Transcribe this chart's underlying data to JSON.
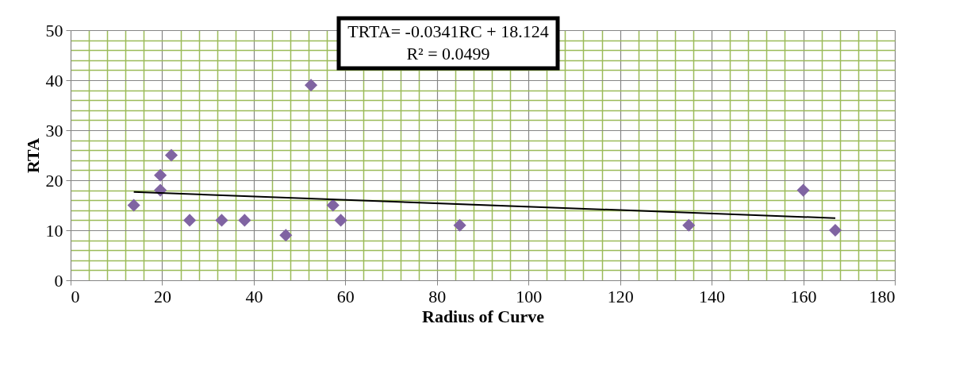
{
  "chart_data": {
    "type": "scatter",
    "xlabel": "Radius of Curve",
    "ylabel": "RTA",
    "xlim": [
      0,
      180
    ],
    "xticks": [
      0,
      {
        "value": 4,
        "label": null
      },
      {
        "value": 8,
        "label": null
      },
      {
        "value": 12,
        "label": null
      },
      {
        "value": 16,
        "label": null
      },
      20,
      {
        "value": 24,
        "label": null
      },
      {
        "value": 28,
        "label": null
      },
      {
        "value": 32,
        "label": null
      },
      {
        "value": 36,
        "label": null
      },
      40,
      {
        "value": 44,
        "label": null
      },
      {
        "value": 48,
        "label": null
      },
      {
        "value": 52,
        "label": null
      },
      {
        "value": 56,
        "label": null
      },
      60,
      {
        "value": 64,
        "label": null
      },
      {
        "value": 68,
        "label": null
      },
      {
        "value": 72,
        "label": null
      },
      {
        "value": 76,
        "label": null
      },
      80,
      {
        "value": 84,
        "label": null
      },
      {
        "value": 88,
        "label": null
      },
      {
        "value": 92,
        "label": null
      },
      {
        "value": 96,
        "label": null
      },
      100,
      {
        "value": 104,
        "label": null
      },
      {
        "value": 108,
        "label": null
      },
      {
        "value": 112,
        "label": null
      },
      {
        "value": 116,
        "label": null
      },
      120,
      {
        "value": 124,
        "label": null
      },
      {
        "value": 128,
        "label": null
      },
      {
        "value": 132,
        "label": null
      },
      {
        "value": 136,
        "label": null
      },
      140,
      {
        "value": 144,
        "label": null
      },
      {
        "value": 148,
        "label": null
      },
      {
        "value": 152,
        "label": null
      },
      {
        "value": 156,
        "label": null
      },
      160,
      {
        "value": 164,
        "label": null
      },
      {
        "value": 168,
        "label": null
      },
      {
        "value": 172,
        "label": null
      },
      {
        "value": 176,
        "label": null
      },
      180
    ],
    "ylim": [
      0,
      50
    ],
    "yticks": [
      0,
      {
        "value": 2,
        "label": null
      },
      {
        "value": 4,
        "label": null
      },
      {
        "value": 6,
        "label": null
      },
      {
        "value": 8,
        "label": null
      },
      10,
      {
        "value": 12,
        "label": null
      },
      {
        "value": 14,
        "label": null
      },
      {
        "value": 16,
        "label": null
      },
      {
        "value": 18,
        "label": null
      },
      20,
      {
        "value": 22,
        "label": null
      },
      {
        "value": 24,
        "label": null
      },
      {
        "value": 26,
        "label": null
      },
      {
        "value": 28,
        "label": null
      },
      30,
      {
        "value": 32,
        "label": null
      },
      {
        "value": 34,
        "label": null
      },
      {
        "value": 36,
        "label": null
      },
      {
        "value": 38,
        "label": null
      },
      40,
      {
        "value": 42,
        "label": null
      },
      {
        "value": 44,
        "label": null
      },
      {
        "value": 46,
        "label": null
      },
      {
        "value": 48,
        "label": null
      },
      50
    ],
    "grid": true,
    "annotations": [
      "TRTA= -0.0341RC + 18.124",
      "R² = 0.0499"
    ],
    "series": [
      {
        "type": "scatter",
        "marker": "diamond",
        "color": "#8064a2",
        "x": [
          13.8,
          19.6,
          19.6,
          22,
          26,
          33,
          38,
          47,
          52.5,
          57.3,
          59,
          85,
          135,
          160,
          167
        ],
        "values": [
          15,
          18,
          21,
          25,
          12,
          12,
          12,
          9,
          39,
          15,
          12,
          11,
          11,
          18,
          10
        ]
      },
      {
        "type": "line",
        "marker": "none",
        "color": "#000000",
        "x": [
          13.8,
          167
        ],
        "values": [
          17.65,
          12.43
        ]
      }
    ]
  }
}
